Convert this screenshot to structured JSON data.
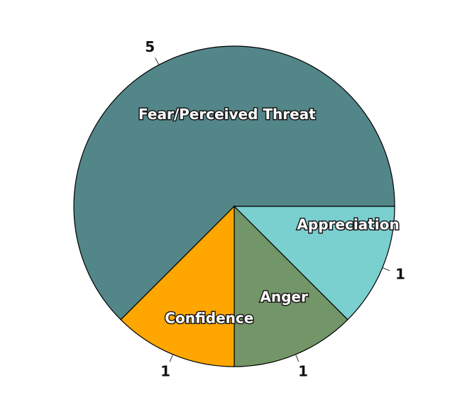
{
  "chart_data": {
    "type": "pie",
    "title": "",
    "slices": [
      {
        "label": "Fear/Perceived Threat",
        "value": 5,
        "value_label": "5",
        "color": "#538689"
      },
      {
        "label": "Appreciation",
        "value": 1,
        "value_label": "1",
        "color": "#7acfcf"
      },
      {
        "label": "Anger",
        "value": 1,
        "value_label": "1",
        "color": "#739668"
      },
      {
        "label": "Confidence",
        "value": 1,
        "value_label": "1",
        "color": "#ffa600"
      }
    ],
    "start_angle_deg": 0,
    "direction": "clockwise-on-screen",
    "legend": "none"
  }
}
